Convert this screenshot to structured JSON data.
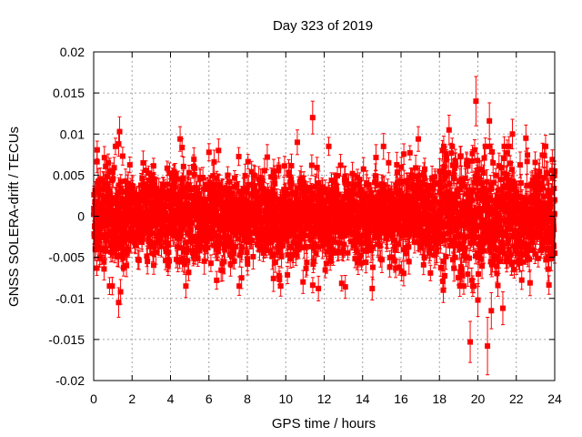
{
  "chart_data": {
    "type": "scatter",
    "title": "Day 323 of 2019",
    "xlabel": "GPS time / hours",
    "ylabel": "GNSS SOLERA-drift / TECUs",
    "xlim": [
      0,
      24
    ],
    "ylim": [
      -0.02,
      0.02
    ],
    "grid": true,
    "legend": "none",
    "marker": "square",
    "error_bars": true,
    "color": "#ff0000",
    "xticks": [
      0,
      2,
      4,
      6,
      8,
      10,
      12,
      14,
      16,
      18,
      20,
      22,
      24
    ],
    "xtick_labels": [
      "0",
      "2",
      "4",
      "6",
      "8",
      "10",
      "12",
      "14",
      "16",
      "18",
      "20",
      "22",
      "24"
    ],
    "yticks": [
      -0.02,
      -0.015,
      -0.01,
      -0.005,
      0,
      0.005,
      0.01,
      0.015,
      0.02
    ],
    "ytick_labels": [
      "-0.02",
      "-0.015",
      "-0.01",
      "-0.005",
      "0",
      "0.005",
      "0.01",
      "0.015",
      "0.02"
    ],
    "outliers": [
      {
        "x": 1.35,
        "y": 0.0103,
        "err": 0.0018
      },
      {
        "x": 1.3,
        "y": 0.0088,
        "err": 0.0015
      },
      {
        "x": 1.3,
        "y": -0.0105,
        "err": 0.0018
      },
      {
        "x": 1.4,
        "y": -0.0092,
        "err": 0.0015
      },
      {
        "x": 4.5,
        "y": 0.0094,
        "err": 0.0015
      },
      {
        "x": 4.8,
        "y": -0.0085,
        "err": 0.0014
      },
      {
        "x": 6.5,
        "y": 0.008,
        "err": 0.0014
      },
      {
        "x": 7.7,
        "y": -0.0075,
        "err": 0.0013
      },
      {
        "x": 10.6,
        "y": 0.009,
        "err": 0.0015
      },
      {
        "x": 10.9,
        "y": -0.008,
        "err": 0.0014
      },
      {
        "x": 11.4,
        "y": 0.012,
        "err": 0.002
      },
      {
        "x": 11.7,
        "y": -0.0088,
        "err": 0.0015
      },
      {
        "x": 13.1,
        "y": -0.0086,
        "err": 0.0014
      },
      {
        "x": 14.5,
        "y": -0.0088,
        "err": 0.0014
      },
      {
        "x": 16.9,
        "y": 0.0094,
        "err": 0.0015
      },
      {
        "x": 18.2,
        "y": -0.009,
        "err": 0.0015
      },
      {
        "x": 18.5,
        "y": 0.0105,
        "err": 0.0018
      },
      {
        "x": 19.6,
        "y": -0.0153,
        "err": 0.0025
      },
      {
        "x": 19.9,
        "y": 0.014,
        "err": 0.003
      },
      {
        "x": 20.0,
        "y": -0.0102,
        "err": 0.002
      },
      {
        "x": 20.5,
        "y": -0.0158,
        "err": 0.0035
      },
      {
        "x": 20.6,
        "y": 0.0116,
        "err": 0.0022
      },
      {
        "x": 20.7,
        "y": -0.0115,
        "err": 0.0022
      },
      {
        "x": 21.3,
        "y": -0.0112,
        "err": 0.002
      },
      {
        "x": 21.8,
        "y": 0.01,
        "err": 0.0018
      },
      {
        "x": 22.5,
        "y": 0.0095,
        "err": 0.0016
      },
      {
        "x": 24.0,
        "y": 0.0055,
        "err": 0.0012
      },
      {
        "x": 24.0,
        "y": -0.0045,
        "err": 0.0012
      }
    ]
  }
}
